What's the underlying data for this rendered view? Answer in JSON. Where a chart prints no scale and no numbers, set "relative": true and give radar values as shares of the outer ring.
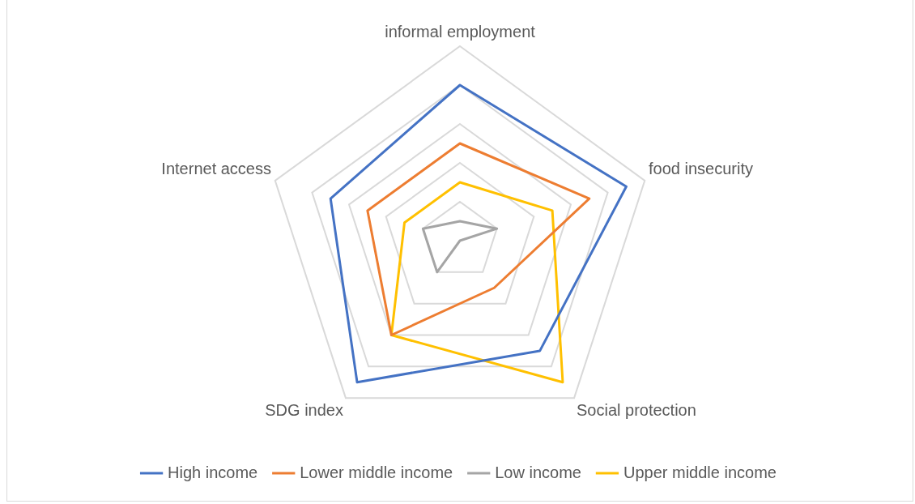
{
  "chart_data": {
    "type": "radar",
    "relative": true,
    "categories": [
      "informal employment",
      "food insecurity",
      "Social protection",
      "SDG index",
      "Internet access"
    ],
    "series": [
      {
        "name": "High income",
        "color": "#4472c4",
        "values": [
          0.8,
          0.9,
          0.7,
          0.9,
          0.7
        ]
      },
      {
        "name": "Lower middle income",
        "color": "#ed7d31",
        "values": [
          0.5,
          0.7,
          0.3,
          0.6,
          0.5
        ]
      },
      {
        "name": "Low income",
        "color": "#a5a5a5",
        "values": [
          0.1,
          0.2,
          0,
          0.2,
          0.2
        ]
      },
      {
        "name": "Upper middle income",
        "color": "#ffc000",
        "values": [
          0.3,
          0.5,
          0.9,
          0.6,
          0.3
        ]
      }
    ],
    "grid": true,
    "legend": "bottom",
    "marker": "none",
    "line_style": "solid"
  }
}
